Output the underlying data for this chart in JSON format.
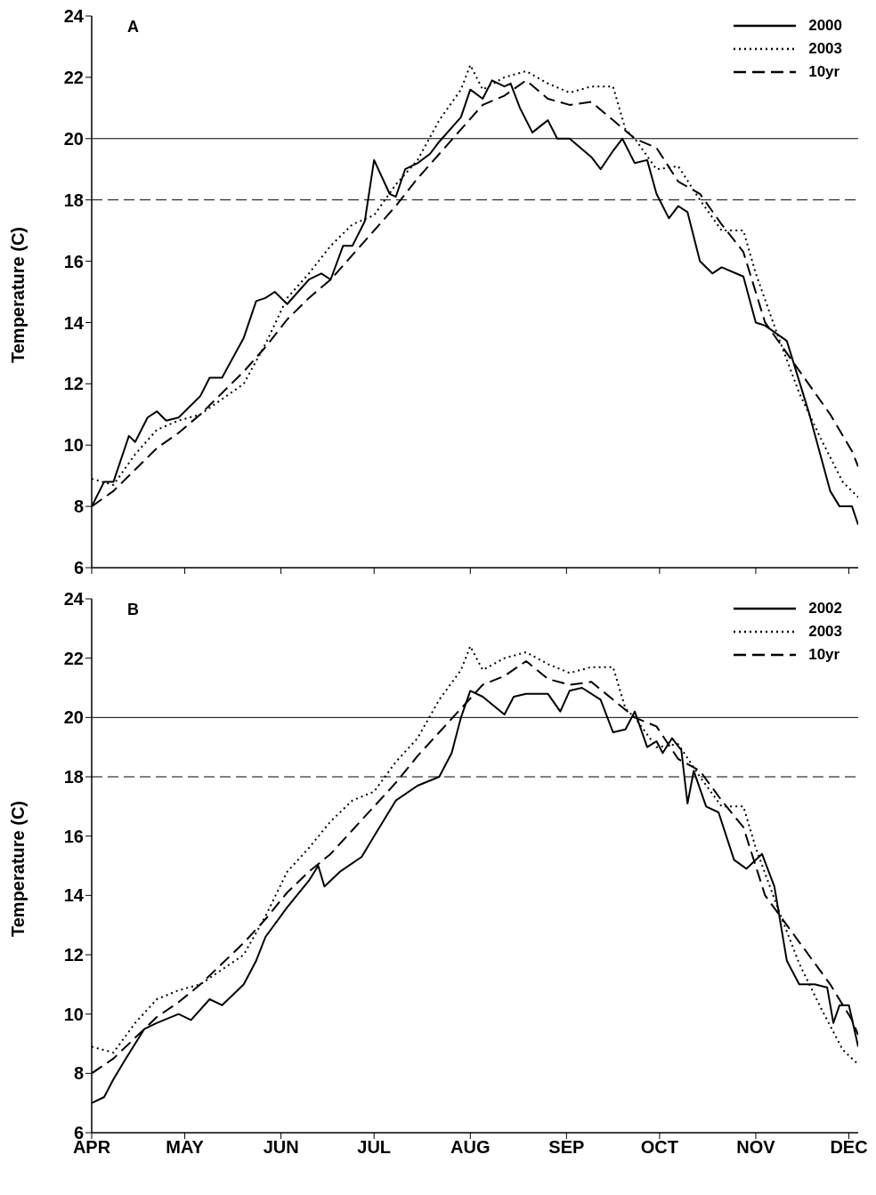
{
  "chart_data": [
    {
      "type": "line",
      "annotations": [
        "A"
      ],
      "ylabel": "Temperature (C)",
      "ylim": [
        6,
        24
      ],
      "yticks": [
        6,
        8,
        10,
        12,
        14,
        16,
        18,
        20,
        22,
        24
      ],
      "xlim": [
        "--04-01",
        "--12-04"
      ],
      "xticks": [
        {
          "value": "--04-01",
          "label": "APR"
        },
        {
          "value": "--05-01",
          "label": "MAY"
        },
        {
          "value": "--06-01",
          "label": "JUN"
        },
        {
          "value": "--07-01",
          "label": "JUL"
        },
        {
          "value": "--08-01",
          "label": "AUG"
        },
        {
          "value": "--09-01",
          "label": "SEP"
        },
        {
          "value": "--10-01",
          "label": "OCT"
        },
        {
          "value": "--11-01",
          "label": "NOV"
        },
        {
          "value": "--12-01",
          "label": "DEC"
        }
      ],
      "tick_labels": "y",
      "legend": "top right",
      "marker": "none",
      "ref_lines": [
        {
          "axis": "y",
          "value": 20,
          "color": "#000000",
          "line_style": "solid"
        },
        {
          "axis": "y",
          "value": 18,
          "color": "#000000",
          "line_style": "dashed"
        }
      ],
      "series": [
        {
          "name": "2000",
          "color": "#000000",
          "line_style": "solid",
          "x": [
            "--04-01",
            "--04-05",
            "--04-08",
            "--04-12",
            "--04-13",
            "--04-15",
            "--04-19",
            "--04-22",
            "--04-25",
            "--04-29",
            "--05-06",
            "--05-09",
            "--05-13",
            "--05-20",
            "--05-24",
            "--05-27",
            "--05-30",
            "--06-03",
            "--06-10",
            "--06-14",
            "--06-17",
            "--06-21",
            "--06-24",
            "--06-28",
            "--07-01",
            "--07-06",
            "--07-08",
            "--07-11",
            "--07-15",
            "--07-19",
            "--07-22",
            "--07-29",
            "--08-01",
            "--08-05",
            "--08-08",
            "--08-12",
            "--08-14",
            "--08-17",
            "--08-19",
            "--08-21",
            "--08-26",
            "--08-29",
            "--09-02",
            "--09-09",
            "--09-12",
            "--09-16",
            "--09-19",
            "--09-23",
            "--09-27",
            "--09-30",
            "--10-04",
            "--10-07",
            "--10-10",
            "--10-14",
            "--10-18",
            "--10-21",
            "--10-28",
            "--11-01",
            "--11-04",
            "--11-11",
            "--11-18",
            "--11-25",
            "--11-28",
            "--12-02",
            "--12-04"
          ],
          "values": [
            8.0,
            8.8,
            8.8,
            10.0,
            10.3,
            10.1,
            10.9,
            11.1,
            10.8,
            10.9,
            11.6,
            12.2,
            12.2,
            13.5,
            14.7,
            14.8,
            15.0,
            14.6,
            15.4,
            15.6,
            15.4,
            16.5,
            16.5,
            17.3,
            19.3,
            18.2,
            18.1,
            19.0,
            19.2,
            19.5,
            19.9,
            20.7,
            21.6,
            21.3,
            21.9,
            21.7,
            21.8,
            21.0,
            20.6,
            20.2,
            20.6,
            20.0,
            20.0,
            19.4,
            19.0,
            19.6,
            20.0,
            19.2,
            19.3,
            18.2,
            17.4,
            17.8,
            17.6,
            16.0,
            15.6,
            15.8,
            15.5,
            14.0,
            13.9,
            13.4,
            11.1,
            8.5,
            8.0,
            8.0,
            7.4
          ]
        },
        {
          "name": "2003",
          "color": "#000000",
          "line_style": "dotted",
          "x": [
            "--04-01",
            "--04-08",
            "--04-15",
            "--04-22",
            "--04-29",
            "--05-06",
            "--05-13",
            "--05-20",
            "--05-27",
            "--06-03",
            "--06-10",
            "--06-17",
            "--06-24",
            "--07-01",
            "--07-08",
            "--07-15",
            "--07-22",
            "--07-29",
            "--08-01",
            "--08-05",
            "--08-12",
            "--08-19",
            "--08-26",
            "--09-02",
            "--09-09",
            "--09-16",
            "--09-20",
            "--09-23",
            "--09-30",
            "--10-07",
            "--10-14",
            "--10-21",
            "--10-28",
            "--11-01",
            "--11-08",
            "--11-15",
            "--11-22",
            "--11-29",
            "--12-04"
          ],
          "values": [
            8.9,
            8.7,
            9.7,
            10.5,
            10.8,
            11.0,
            11.5,
            12.0,
            13.3,
            14.8,
            15.6,
            16.5,
            17.2,
            17.5,
            18.5,
            19.3,
            20.6,
            21.6,
            22.4,
            21.6,
            22.0,
            22.2,
            21.8,
            21.5,
            21.7,
            21.7,
            20.3,
            20.0,
            19.0,
            19.1,
            18.0,
            17.0,
            17.0,
            15.6,
            13.6,
            11.7,
            10.2,
            8.8,
            8.3
          ]
        },
        {
          "name": "10yr",
          "color": "#000000",
          "line_style": "dashed",
          "x": [
            "--04-01",
            "--04-08",
            "--04-15",
            "--04-22",
            "--04-29",
            "--05-06",
            "--05-13",
            "--05-20",
            "--05-27",
            "--06-03",
            "--06-10",
            "--06-17",
            "--06-24",
            "--07-01",
            "--07-08",
            "--07-15",
            "--07-22",
            "--07-29",
            "--08-05",
            "--08-12",
            "--08-19",
            "--08-26",
            "--09-02",
            "--09-09",
            "--09-16",
            "--09-23",
            "--09-30",
            "--10-07",
            "--10-14",
            "--10-21",
            "--10-28",
            "--11-04",
            "--11-11",
            "--11-18",
            "--11-25",
            "--12-02",
            "--12-04"
          ],
          "values": [
            8.0,
            8.5,
            9.2,
            9.9,
            10.4,
            11.0,
            11.7,
            12.4,
            13.2,
            14.1,
            14.8,
            15.4,
            16.2,
            17.0,
            17.8,
            18.7,
            19.5,
            20.3,
            21.1,
            21.4,
            21.9,
            21.3,
            21.1,
            21.2,
            20.6,
            20.0,
            19.7,
            18.6,
            18.2,
            17.2,
            16.3,
            14.0,
            13.0,
            12.0,
            11.0,
            9.8,
            9.3
          ]
        }
      ]
    },
    {
      "type": "line",
      "annotations": [
        "B"
      ],
      "ylabel": "Temperature (C)",
      "ylim": [
        6,
        24
      ],
      "yticks": [
        6,
        8,
        10,
        12,
        14,
        16,
        18,
        20,
        22,
        24
      ],
      "xlim": [
        "--04-01",
        "--12-04"
      ],
      "xticks": [
        {
          "value": "--04-01",
          "label": "APR"
        },
        {
          "value": "--05-01",
          "label": "MAY"
        },
        {
          "value": "--06-01",
          "label": "JUN"
        },
        {
          "value": "--07-01",
          "label": "JUL"
        },
        {
          "value": "--08-01",
          "label": "AUG"
        },
        {
          "value": "--09-01",
          "label": "SEP"
        },
        {
          "value": "--10-01",
          "label": "OCT"
        },
        {
          "value": "--11-01",
          "label": "NOV"
        },
        {
          "value": "--12-01",
          "label": "DEC"
        }
      ],
      "legend": "top right",
      "marker": "none",
      "ref_lines": [
        {
          "axis": "y",
          "value": 20,
          "color": "#000000",
          "line_style": "solid"
        },
        {
          "axis": "y",
          "value": 18,
          "color": "#000000",
          "line_style": "dashed"
        }
      ],
      "series": [
        {
          "name": "2002",
          "color": "#000000",
          "line_style": "solid",
          "x": [
            "--04-01",
            "--04-05",
            "--04-08",
            "--04-12",
            "--04-18",
            "--04-22",
            "--04-29",
            "--05-03",
            "--05-09",
            "--05-13",
            "--05-20",
            "--05-24",
            "--05-27",
            "--06-03",
            "--06-10",
            "--06-13",
            "--06-15",
            "--06-20",
            "--06-27",
            "--07-01",
            "--07-08",
            "--07-15",
            "--07-22",
            "--07-26",
            "--07-29",
            "--08-01",
            "--08-05",
            "--08-12",
            "--08-15",
            "--08-19",
            "--08-26",
            "--08-30",
            "--09-02",
            "--09-06",
            "--09-12",
            "--09-16",
            "--09-20",
            "--09-23",
            "--09-27",
            "--09-30",
            "--10-02",
            "--10-05",
            "--10-08",
            "--10-10",
            "--10-12",
            "--10-16",
            "--10-20",
            "--10-25",
            "--10-29",
            "--11-03",
            "--11-07",
            "--11-11",
            "--11-15",
            "--11-20",
            "--11-24",
            "--11-26",
            "--11-28",
            "--12-01",
            "--12-04"
          ],
          "values": [
            7.0,
            7.2,
            7.8,
            8.5,
            9.5,
            9.7,
            10.0,
            9.8,
            10.5,
            10.3,
            11.0,
            11.8,
            12.6,
            13.6,
            14.5,
            15.0,
            14.3,
            14.8,
            15.3,
            16.0,
            17.2,
            17.7,
            18.0,
            18.8,
            20.0,
            20.9,
            20.7,
            20.1,
            20.7,
            20.8,
            20.8,
            20.2,
            20.9,
            21.0,
            20.6,
            19.5,
            19.6,
            20.2,
            19.0,
            19.2,
            18.8,
            19.3,
            18.9,
            17.1,
            18.2,
            17.0,
            16.8,
            15.2,
            14.9,
            15.4,
            14.3,
            11.8,
            11.0,
            11.0,
            10.9,
            9.7,
            10.3,
            10.3,
            8.9
          ]
        },
        {
          "name": "2003",
          "color": "#000000",
          "line_style": "dotted",
          "x": [
            "--04-01",
            "--04-08",
            "--04-15",
            "--04-22",
            "--04-29",
            "--05-06",
            "--05-13",
            "--05-20",
            "--05-27",
            "--06-03",
            "--06-10",
            "--06-17",
            "--06-24",
            "--07-01",
            "--07-08",
            "--07-15",
            "--07-22",
            "--07-29",
            "--08-01",
            "--08-05",
            "--08-12",
            "--08-19",
            "--08-26",
            "--09-02",
            "--09-09",
            "--09-16",
            "--09-20",
            "--09-23",
            "--09-30",
            "--10-07",
            "--10-14",
            "--10-21",
            "--10-28",
            "--11-01",
            "--11-08",
            "--11-15",
            "--11-22",
            "--11-29",
            "--12-04"
          ],
          "values": [
            8.9,
            8.7,
            9.7,
            10.5,
            10.8,
            11.0,
            11.5,
            12.0,
            13.3,
            14.8,
            15.6,
            16.5,
            17.2,
            17.5,
            18.5,
            19.3,
            20.6,
            21.6,
            22.4,
            21.6,
            22.0,
            22.2,
            21.8,
            21.5,
            21.7,
            21.7,
            20.3,
            20.0,
            19.0,
            19.1,
            18.0,
            17.0,
            17.0,
            15.6,
            13.6,
            11.7,
            10.2,
            8.8,
            8.3
          ]
        },
        {
          "name": "10yr",
          "color": "#000000",
          "line_style": "dashed",
          "x": [
            "--04-01",
            "--04-08",
            "--04-15",
            "--04-22",
            "--04-29",
            "--05-06",
            "--05-13",
            "--05-20",
            "--05-27",
            "--06-03",
            "--06-10",
            "--06-17",
            "--06-24",
            "--07-01",
            "--07-08",
            "--07-15",
            "--07-22",
            "--07-29",
            "--08-05",
            "--08-12",
            "--08-19",
            "--08-26",
            "--09-02",
            "--09-09",
            "--09-16",
            "--09-23",
            "--09-30",
            "--10-07",
            "--10-14",
            "--10-21",
            "--10-28",
            "--11-04",
            "--11-11",
            "--11-18",
            "--11-25",
            "--12-02",
            "--12-04"
          ],
          "values": [
            8.0,
            8.5,
            9.2,
            9.9,
            10.4,
            11.0,
            11.7,
            12.4,
            13.2,
            14.1,
            14.8,
            15.4,
            16.2,
            17.0,
            17.8,
            18.7,
            19.5,
            20.3,
            21.1,
            21.4,
            21.9,
            21.3,
            21.1,
            21.2,
            20.6,
            20.0,
            19.7,
            18.6,
            18.2,
            17.2,
            16.3,
            14.0,
            13.0,
            12.0,
            11.0,
            9.8,
            9.3
          ]
        }
      ]
    }
  ]
}
